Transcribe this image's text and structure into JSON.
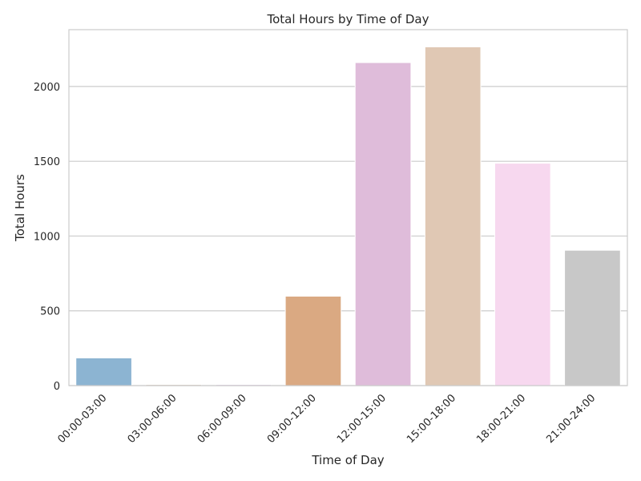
{
  "chart_data": {
    "type": "bar",
    "title": "Total Hours by Time of Day",
    "xlabel": "Time of Day",
    "ylabel": "Total Hours",
    "categories": [
      "00:00-03:00",
      "03:00-06:00",
      "06:00-09:00",
      "09:00-12:00",
      "12:00-15:00",
      "15:00-18:00",
      "18:00-21:00",
      "21:00-24:00"
    ],
    "values": [
      185,
      8,
      8,
      598,
      2160,
      2265,
      1487,
      905
    ],
    "colors": [
      "#8cb4d2",
      "#e6d7c8",
      "#e8d8ec",
      "#daa982",
      "#dfbcda",
      "#e0c8b4",
      "#f7d8ef",
      "#c8c8c8"
    ],
    "yticks": [
      0,
      500,
      1000,
      1500,
      2000
    ],
    "ylim": [
      0,
      2380
    ],
    "grid": "horizontal",
    "legend": "none"
  }
}
